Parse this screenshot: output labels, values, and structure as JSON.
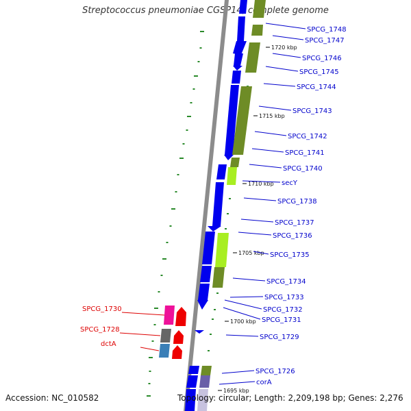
{
  "title": "Streptococcus pneumoniae CGSP14, complete genome",
  "footer": {
    "accession": "Accession: NC_010582",
    "topology": "Topology: circular; Length: 2,209,198 bp; Genes: 2,276"
  },
  "colors": {
    "backbone": "#8c8c8c",
    "cds_forward": "#0000ee",
    "cog_olive": "#6e8c26",
    "cog_lime": "#a8ee22",
    "label_blue": "#0000cc",
    "label_red": "#dd0000",
    "gc_ticks": "#2a8a2a"
  },
  "scale_labels": [
    "1720 kbp",
    "1715 kbp",
    "1710 kbp",
    "1705 kbp",
    "1700 kbp",
    "1695 kbp"
  ],
  "right_labels": [
    "SPCG_1748",
    "SPCG_1747",
    "SPCG_1746",
    "SPCG_1745",
    "SPCG_1744",
    "SPCG_1743",
    "SPCG_1742",
    "SPCG_1741",
    "SPCG_1740",
    "secY",
    "SPCG_1738",
    "SPCG_1737",
    "SPCG_1736",
    "SPCG_1735",
    "SPCG_1734",
    "SPCG_1733",
    "SPCG_1732",
    "SPCG_1731",
    "SPCG_1729",
    "SPCG_1726",
    "corA"
  ],
  "left_labels": [
    "SPCG_1730",
    "SPCG_1728",
    "dctA"
  ]
}
